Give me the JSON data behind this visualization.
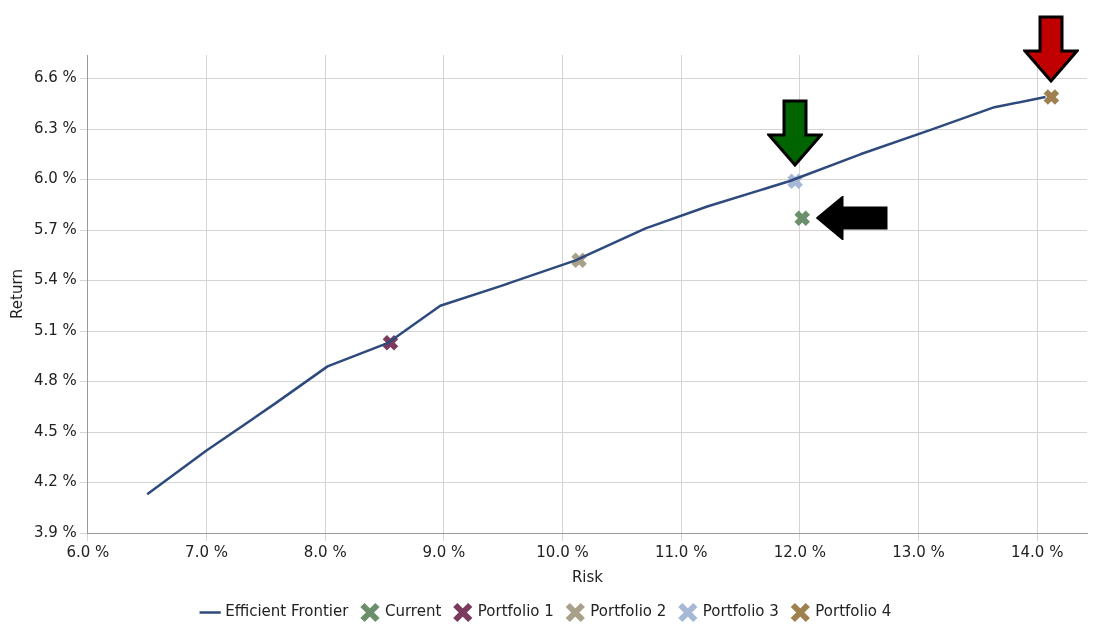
{
  "chart_data": {
    "type": "scatter",
    "xlabel": "Risk",
    "ylabel": "Return",
    "xlim": [
      6.0,
      14.42
    ],
    "ylim": [
      3.9,
      6.74
    ],
    "xticks": [
      {
        "value": 6,
        "label": "6.0 %"
      },
      {
        "value": 7,
        "label": "7.0 %"
      },
      {
        "value": 8,
        "label": "8.0 %"
      },
      {
        "value": 9,
        "label": "9.0 %"
      },
      {
        "value": 10,
        "label": "10.0 %"
      },
      {
        "value": 11,
        "label": "11.0 %"
      },
      {
        "value": 12,
        "label": "12.0 %"
      },
      {
        "value": 13,
        "label": "13.0 %"
      },
      {
        "value": 14,
        "label": "14.0 %"
      }
    ],
    "yticks": [
      {
        "value": 3.9,
        "label": "3.9 %"
      },
      {
        "value": 4.2,
        "label": "4.2 %"
      },
      {
        "value": 4.5,
        "label": "4.5 %"
      },
      {
        "value": 4.8,
        "label": "4.8 %"
      },
      {
        "value": 5.1,
        "label": "5.1 %"
      },
      {
        "value": 5.4,
        "label": "5.4 %"
      },
      {
        "value": 5.7,
        "label": "5.7 %"
      },
      {
        "value": 6.0,
        "label": "6.0 %"
      },
      {
        "value": 6.3,
        "label": "6.3 %"
      },
      {
        "value": 6.6,
        "label": "6.6 %"
      }
    ],
    "grid": true,
    "legend": "bottom",
    "marker": "cross",
    "series": [
      {
        "name": "Efficient Frontier",
        "type": "line",
        "marker": "none",
        "color": "#2e4a7d",
        "x": [
          6.5,
          7.0,
          7.58,
          8.02,
          8.53,
          8.97,
          9.49,
          10.11,
          10.7,
          11.22,
          11.91,
          12.51,
          13.12,
          13.64,
          14.07
        ],
        "values": [
          4.13,
          4.39,
          4.67,
          4.89,
          5.03,
          5.25,
          5.37,
          5.52,
          5.71,
          5.84,
          5.99,
          6.15,
          6.3,
          6.43,
          6.49
        ]
      },
      {
        "name": "Current",
        "color": "#6b8e6b",
        "x": [
          12.02
        ],
        "values": [
          5.77
        ]
      },
      {
        "name": "Portfolio 1",
        "color": "#7a3b5f",
        "x": [
          8.55
        ],
        "values": [
          5.03
        ]
      },
      {
        "name": "Portfolio 2",
        "color": "#a8a08a",
        "x": [
          10.14
        ],
        "values": [
          5.52
        ]
      },
      {
        "name": "Portfolio 3",
        "color": "#a5b8d6",
        "x": [
          11.96
        ],
        "values": [
          5.99
        ]
      },
      {
        "name": "Portfolio 4",
        "color": "#a0804f",
        "x": [
          14.12
        ],
        "values": [
          6.49
        ]
      }
    ]
  }
}
